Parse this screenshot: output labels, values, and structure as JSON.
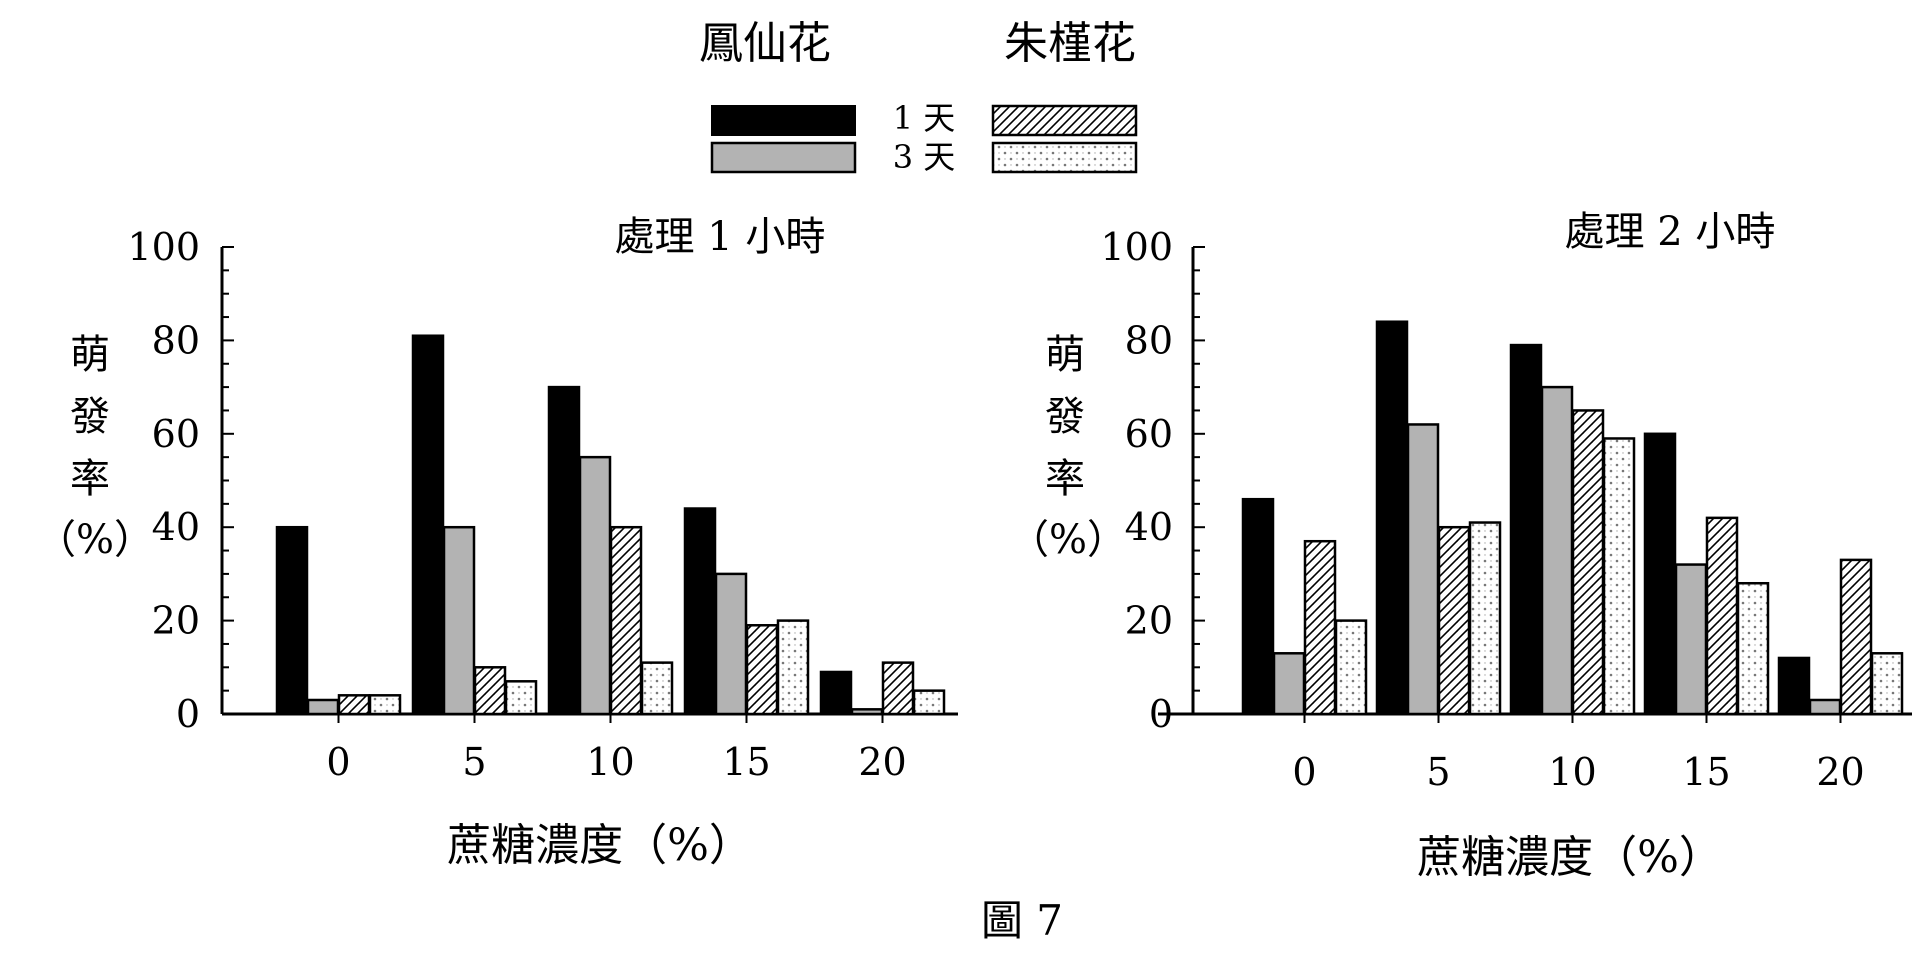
{
  "figure_caption": "圖 7",
  "legend": {
    "headers": [
      "鳳仙花",
      "朱槿花"
    ],
    "rows": [
      "1 天",
      "3 天"
    ],
    "entries": [
      {
        "series": "鳳仙花 1 天",
        "pattern": "solid-black"
      },
      {
        "series": "鳳仙花 3 天",
        "pattern": "solid-gray"
      },
      {
        "series": "朱槿花 1 天",
        "pattern": "hatch"
      },
      {
        "series": "朱槿花 3 天",
        "pattern": "dots"
      }
    ]
  },
  "colors": {
    "black": "#000000",
    "gray": "#b3b3b3",
    "white": "#ffffff"
  },
  "chart_data": [
    {
      "type": "bar",
      "title": "處理 1 小時",
      "xlabel": "蔗糖濃度（%）",
      "ylabel": [
        "萌",
        "發",
        "率",
        "（%）"
      ],
      "ylim": [
        0,
        100
      ],
      "yticks": [
        0,
        20,
        40,
        60,
        80,
        100
      ],
      "categories": [
        "0",
        "5",
        "10",
        "15",
        "20"
      ],
      "series": [
        {
          "values": [
            40,
            81,
            70,
            44,
            9
          ]
        },
        {
          "values": [
            3,
            40,
            55,
            30,
            1
          ]
        },
        {
          "values": [
            4,
            10,
            40,
            19,
            11
          ]
        },
        {
          "values": [
            4,
            7,
            11,
            20,
            5
          ]
        }
      ],
      "grid": false,
      "legend_placement": "top-center"
    },
    {
      "type": "bar",
      "title": "處理 2 小時",
      "xlabel": "蔗糖濃度（%）",
      "ylabel": [
        "萌",
        "發",
        "率",
        "（%）"
      ],
      "ylim": [
        0,
        100
      ],
      "yticks": [
        0,
        20,
        40,
        60,
        80,
        100
      ],
      "categories": [
        "0",
        "5",
        "10",
        "15",
        "20"
      ],
      "series": [
        {
          "values": [
            46,
            84,
            79,
            60,
            12
          ]
        },
        {
          "values": [
            13,
            62,
            70,
            32,
            3
          ]
        },
        {
          "values": [
            37,
            40,
            65,
            42,
            33
          ]
        },
        {
          "values": [
            20,
            41,
            59,
            28,
            13
          ]
        }
      ],
      "grid": false,
      "legend_placement": "top-center"
    }
  ]
}
